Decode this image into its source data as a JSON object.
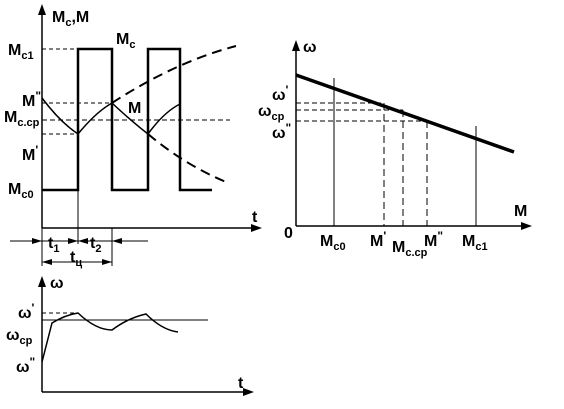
{
  "top_left_plot": {
    "y_axis_label": {
      "main": "M",
      "sub": "c",
      "sep": ",M"
    },
    "t_label": "t",
    "mc1": {
      "main": "M",
      "sub": "c1"
    },
    "mc0": {
      "main": "M",
      "sub": "c0"
    },
    "m_double": {
      "main": "M",
      "sup": "\""
    },
    "m_single": {
      "main": "M",
      "sup": "'"
    },
    "mc_cp": {
      "main": "M",
      "sub": "c.cp"
    },
    "mc_curve": {
      "main": "M",
      "sub": "c"
    },
    "m_curve": "M",
    "t1": {
      "main": "t",
      "sub": "1"
    },
    "t2": {
      "main": "t",
      "sub": "2"
    },
    "tcycle": {
      "main": "t",
      "sub": "ц"
    }
  },
  "bottom_left_plot": {
    "omega_axis": "ω",
    "t_label": "t",
    "omega_single": {
      "main": "ω",
      "sup": "'"
    },
    "omega_cp": {
      "main": "ω",
      "sub": "cp"
    },
    "omega_double": {
      "main": "ω",
      "sup": "\""
    }
  },
  "right_plot": {
    "omega_axis": "ω",
    "m_axis": "M",
    "origin": "0",
    "omega_single": {
      "main": "ω",
      "sup": "'"
    },
    "omega_cp": {
      "main": "ω",
      "sub": "cp"
    },
    "omega_double": {
      "main": "ω",
      "sup": "\""
    },
    "mc0": {
      "main": "M",
      "sub": "c0"
    },
    "m_single": {
      "main": "M",
      "sup": "'"
    },
    "mc_cp": {
      "main": "M",
      "sub": "c.cp"
    },
    "m_double": {
      "main": "M",
      "sup": "\""
    },
    "mc1": {
      "main": "M",
      "sub": "c1"
    }
  }
}
